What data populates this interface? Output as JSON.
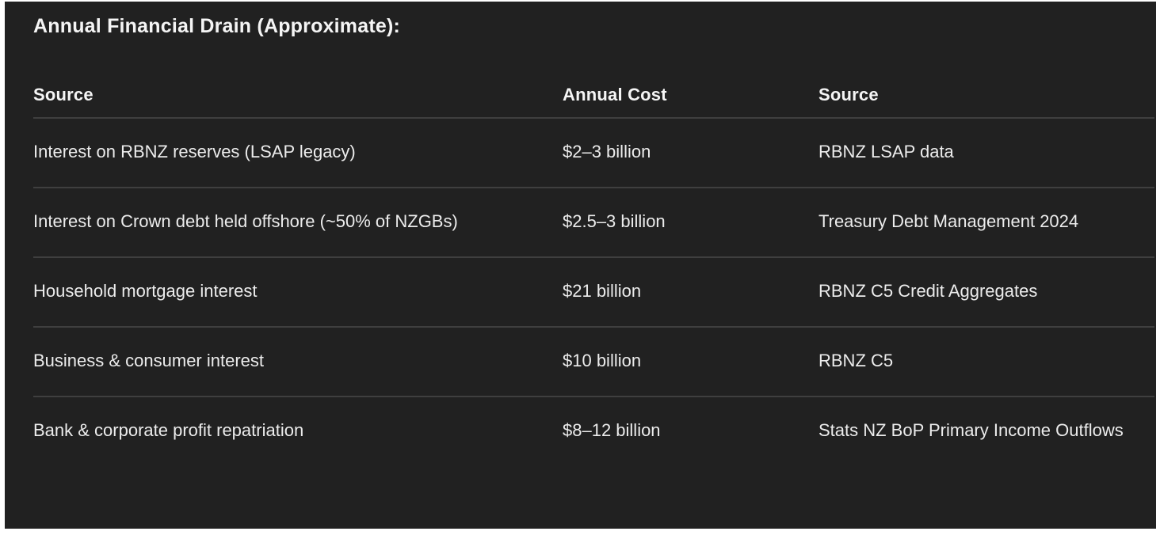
{
  "title": "Annual Financial Drain (Approximate):",
  "colors": {
    "page_bg": "#ffffff",
    "panel_bg": "#212121",
    "text": "#ececec",
    "heading_text": "#f5f5f5",
    "divider": "#3f3f3f"
  },
  "table": {
    "headers": [
      "Source",
      "Annual Cost",
      "Source"
    ],
    "rows": [
      {
        "source": "Interest on RBNZ reserves (LSAP legacy)",
        "cost": "$2–3 billion",
        "reference": "RBNZ LSAP data"
      },
      {
        "source": "Interest on Crown debt held offshore (~50% of NZGBs)",
        "cost": "$2.5–3 billion",
        "reference": "Treasury Debt Management 2024"
      },
      {
        "source": "Household mortgage interest",
        "cost": "$21 billion",
        "reference": "RBNZ C5 Credit Aggregates"
      },
      {
        "source": "Business & consumer interest",
        "cost": "$10 billion",
        "reference": "RBNZ C5"
      },
      {
        "source": "Bank & corporate profit repatriation",
        "cost": "$8–12 billion",
        "reference": "Stats NZ BoP Primary Income Outflows"
      }
    ]
  }
}
